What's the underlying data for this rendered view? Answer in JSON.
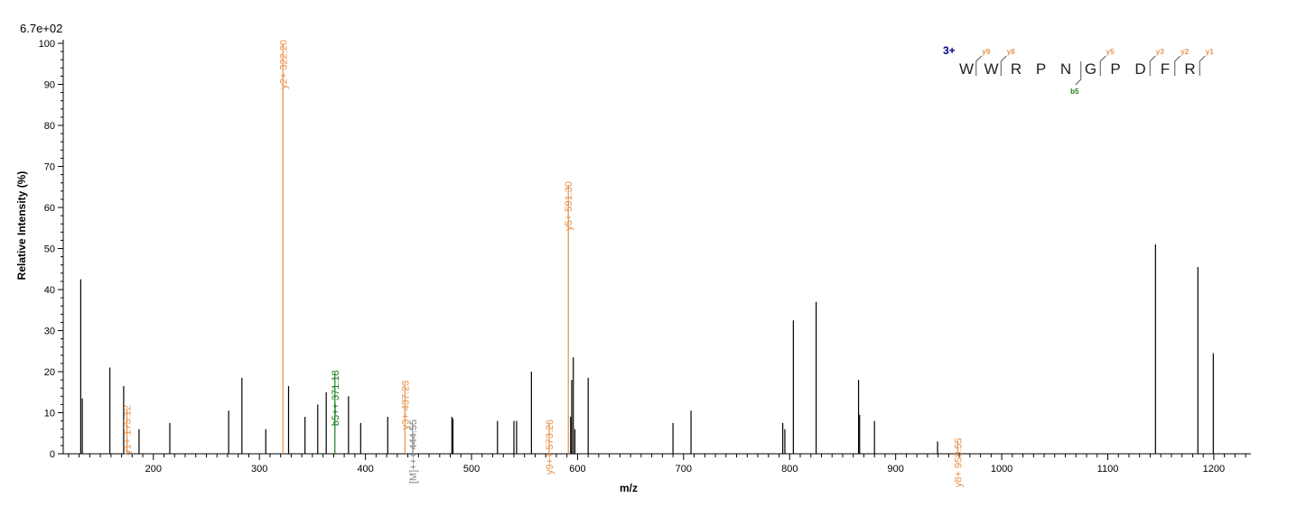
{
  "chart_data": {
    "type": "bar",
    "title": "",
    "scale_label": "6.7e+02",
    "xlabel": "m/z",
    "ylabel": "Relative   Intensity (%)",
    "xlim": [
      115,
      1235
    ],
    "ylim": [
      0,
      100
    ],
    "x_ticks": [
      200,
      300,
      400,
      500,
      600,
      700,
      800,
      900,
      1000,
      1100,
      1200
    ],
    "x_tick_labels": [
      "200",
      "300",
      "400",
      "500",
      "600",
      "700",
      "800",
      "900",
      "1000",
      "1100",
      "1200"
    ],
    "y_ticks": [
      0,
      10,
      20,
      30,
      40,
      50,
      60,
      70,
      80,
      90,
      100
    ],
    "y_tick_labels": [
      "0",
      "10",
      "20",
      "30",
      "40",
      "50",
      "60",
      "70",
      "80",
      "90",
      "100"
    ],
    "colors": {
      "unmatched": "#000000",
      "y_ion": "#e8914a",
      "b_ion": "#1a7f1a",
      "precursor": "#808080",
      "charge": "#00008b"
    },
    "peaks": [
      {
        "mz": 131.5,
        "intensity": 42.5
      },
      {
        "mz": 133.0,
        "intensity": 13.5
      },
      {
        "mz": 159.0,
        "intensity": 21.0
      },
      {
        "mz": 172.0,
        "intensity": 16.5
      },
      {
        "mz": 186.5,
        "intensity": 6.0
      },
      {
        "mz": 215.5,
        "intensity": 7.5
      },
      {
        "mz": 271.0,
        "intensity": 10.5
      },
      {
        "mz": 283.5,
        "intensity": 18.5
      },
      {
        "mz": 306.0,
        "intensity": 6.0
      },
      {
        "mz": 327.5,
        "intensity": 16.5
      },
      {
        "mz": 343.0,
        "intensity": 9.0
      },
      {
        "mz": 355.0,
        "intensity": 12.0
      },
      {
        "mz": 363.0,
        "intensity": 15.0
      },
      {
        "mz": 384.0,
        "intensity": 14.0
      },
      {
        "mz": 395.5,
        "intensity": 7.5
      },
      {
        "mz": 421.0,
        "intensity": 9.0
      },
      {
        "mz": 481.5,
        "intensity": 9.0
      },
      {
        "mz": 482.5,
        "intensity": 8.5
      },
      {
        "mz": 524.5,
        "intensity": 8.0
      },
      {
        "mz": 540.0,
        "intensity": 8.0
      },
      {
        "mz": 542.5,
        "intensity": 8.0
      },
      {
        "mz": 556.5,
        "intensity": 20.0
      },
      {
        "mz": 593.5,
        "intensity": 9.0
      },
      {
        "mz": 594.5,
        "intensity": 18.0
      },
      {
        "mz": 596.0,
        "intensity": 23.5
      },
      {
        "mz": 597.5,
        "intensity": 6.0
      },
      {
        "mz": 610.0,
        "intensity": 18.5
      },
      {
        "mz": 690.0,
        "intensity": 7.5
      },
      {
        "mz": 707.0,
        "intensity": 10.5
      },
      {
        "mz": 793.5,
        "intensity": 7.5
      },
      {
        "mz": 795.5,
        "intensity": 6.0
      },
      {
        "mz": 803.5,
        "intensity": 32.5
      },
      {
        "mz": 825.0,
        "intensity": 37.0
      },
      {
        "mz": 865.0,
        "intensity": 18.0
      },
      {
        "mz": 866.0,
        "intensity": 9.5
      },
      {
        "mz": 880.0,
        "intensity": 8.0
      },
      {
        "mz": 939.5,
        "intensity": 3.0
      },
      {
        "mz": 1145.0,
        "intensity": 51.0
      },
      {
        "mz": 1185.0,
        "intensity": 45.5
      },
      {
        "mz": 1199.5,
        "intensity": 24.5
      }
    ],
    "annotated_peaks": [
      {
        "mz": 175.12,
        "intensity": 11.0,
        "label": "y1+ 175.12",
        "kind": "y_ion"
      },
      {
        "mz": 322.2,
        "intensity": 100,
        "label": "y2+ 322.20",
        "kind": "y_ion"
      },
      {
        "mz": 371.18,
        "intensity": 19.5,
        "label": "b5++ 371.18",
        "kind": "b_ion"
      },
      {
        "mz": 437.23,
        "intensity": 17.0,
        "label": "y3+ 437.23",
        "kind": "y_ion"
      },
      {
        "mz": 444.55,
        "intensity": 7.5,
        "label": "[M]+++ 444.55",
        "kind": "precursor"
      },
      {
        "mz": 573.26,
        "intensity": 7.5,
        "label": "y9++ 573.26",
        "kind": "y_ion"
      },
      {
        "mz": 591.3,
        "intensity": 65.5,
        "label": "y5+ 591.30",
        "kind": "y_ion"
      },
      {
        "mz": 958.55,
        "intensity": 3.0,
        "label": "y8+ 958.55",
        "kind": "y_ion"
      }
    ]
  },
  "sequence": {
    "charge": "3+",
    "residues": [
      "W",
      "W",
      "R",
      "P",
      "N",
      "G",
      "P",
      "D",
      "F",
      "R"
    ],
    "y_fragments": [
      {
        "after": 0,
        "label": "y9"
      },
      {
        "after": 1,
        "label": "y8"
      },
      {
        "after": 5,
        "label": "y5"
      },
      {
        "after": 7,
        "label": "y3"
      },
      {
        "after": 8,
        "label": "y2"
      },
      {
        "after": 9,
        "label": "y1"
      }
    ],
    "b_fragments": [
      {
        "after": 5,
        "label": "b5"
      }
    ]
  }
}
